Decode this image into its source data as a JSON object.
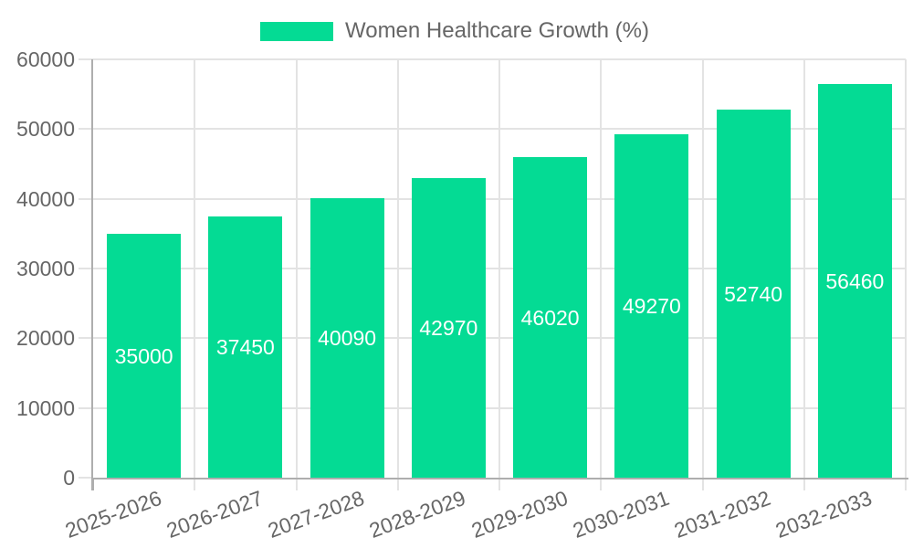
{
  "legend": {
    "label": "Women Healthcare Growth (%)"
  },
  "chart_data": {
    "type": "bar",
    "title": "Women Healthcare Growth (%)",
    "series_name": "Women Healthcare Growth (%)",
    "categories": [
      "2025-2026",
      "2026-2027",
      "2027-2028",
      "2028-2029",
      "2029-2030",
      "2030-2031",
      "2031-2032",
      "2032-2033"
    ],
    "values": [
      35000,
      37450,
      40090,
      42970,
      46020,
      49270,
      52740,
      56460
    ],
    "value_labels": [
      "35000",
      "37450",
      "40090",
      "42970",
      "46020",
      "49270",
      "52740",
      "56460"
    ],
    "xlabel": "",
    "ylabel": "",
    "ylim": [
      0,
      60000
    ],
    "ytick_step": 10000,
    "ytick_labels": [
      "0",
      "10000",
      "20000",
      "30000",
      "40000",
      "50000",
      "60000"
    ],
    "grid": true,
    "legend_position": "top",
    "x_label_rotation_deg": -20,
    "colors": {
      "bar": "#04DB94",
      "axis_text": "#666666",
      "grid": "#e3e3e3",
      "axis_line": "#aeaeae",
      "value_label": "#ffffff",
      "background": "#ffffff"
    }
  }
}
